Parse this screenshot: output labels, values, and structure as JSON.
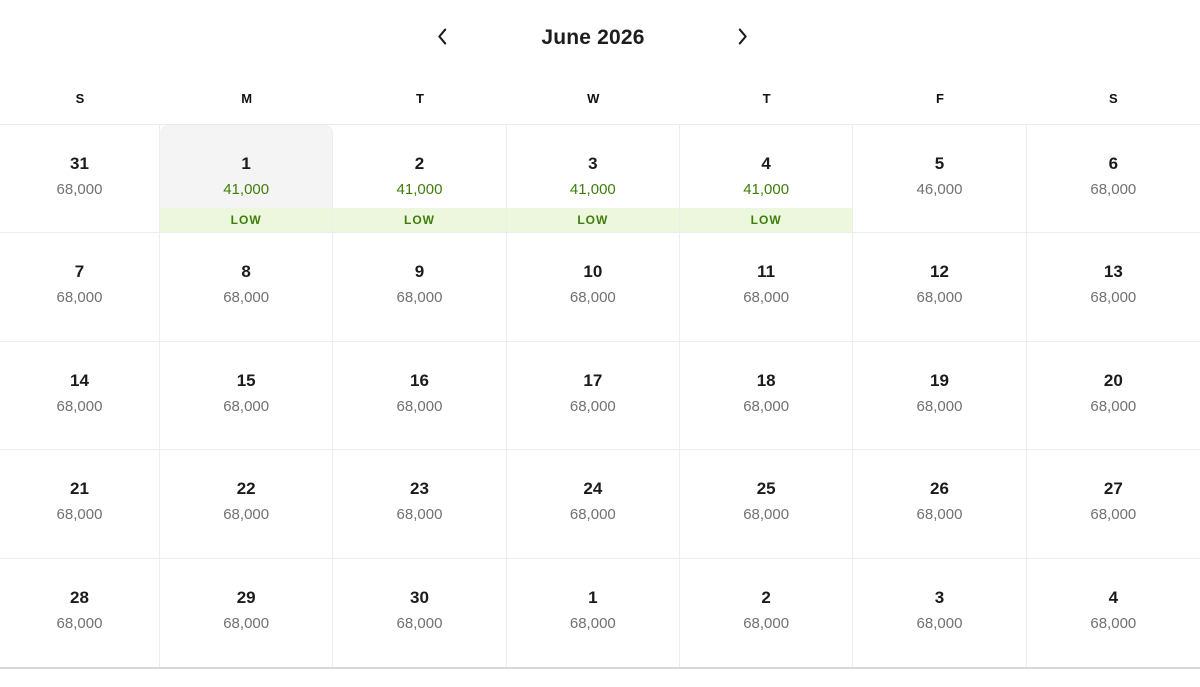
{
  "header": {
    "title": "June 2026",
    "prev_icon": "chevron-left",
    "next_icon": "chevron-right"
  },
  "weekdays": [
    "S",
    "M",
    "T",
    "W",
    "T",
    "F",
    "S"
  ],
  "badge_low_label": "LOW",
  "colors": {
    "accent_green": "#3f7e0a",
    "low_badge_background": "#ecf7de",
    "selected_cell_background": "#f4f4f4",
    "price_gray": "#717171",
    "grid_border": "#ededed"
  },
  "calendar": {
    "weeks": [
      [
        {
          "day": "31",
          "value": "68,000"
        },
        {
          "day": "1",
          "value": "41,000",
          "tone": "low",
          "badge": "LOW",
          "selected": true
        },
        {
          "day": "2",
          "value": "41,000",
          "tone": "low",
          "badge": "LOW"
        },
        {
          "day": "3",
          "value": "41,000",
          "tone": "low",
          "badge": "LOW"
        },
        {
          "day": "4",
          "value": "41,000",
          "tone": "low",
          "badge": "LOW"
        },
        {
          "day": "5",
          "value": "46,000"
        },
        {
          "day": "6",
          "value": "68,000"
        }
      ],
      [
        {
          "day": "7",
          "value": "68,000"
        },
        {
          "day": "8",
          "value": "68,000"
        },
        {
          "day": "9",
          "value": "68,000"
        },
        {
          "day": "10",
          "value": "68,000"
        },
        {
          "day": "11",
          "value": "68,000"
        },
        {
          "day": "12",
          "value": "68,000"
        },
        {
          "day": "13",
          "value": "68,000"
        }
      ],
      [
        {
          "day": "14",
          "value": "68,000"
        },
        {
          "day": "15",
          "value": "68,000"
        },
        {
          "day": "16",
          "value": "68,000"
        },
        {
          "day": "17",
          "value": "68,000"
        },
        {
          "day": "18",
          "value": "68,000"
        },
        {
          "day": "19",
          "value": "68,000"
        },
        {
          "day": "20",
          "value": "68,000"
        }
      ],
      [
        {
          "day": "21",
          "value": "68,000"
        },
        {
          "day": "22",
          "value": "68,000"
        },
        {
          "day": "23",
          "value": "68,000"
        },
        {
          "day": "24",
          "value": "68,000"
        },
        {
          "day": "25",
          "value": "68,000"
        },
        {
          "day": "26",
          "value": "68,000"
        },
        {
          "day": "27",
          "value": "68,000"
        }
      ],
      [
        {
          "day": "28",
          "value": "68,000"
        },
        {
          "day": "29",
          "value": "68,000"
        },
        {
          "day": "30",
          "value": "68,000"
        },
        {
          "day": "1",
          "value": "68,000"
        },
        {
          "day": "2",
          "value": "68,000"
        },
        {
          "day": "3",
          "value": "68,000"
        },
        {
          "day": "4",
          "value": "68,000"
        }
      ]
    ]
  }
}
